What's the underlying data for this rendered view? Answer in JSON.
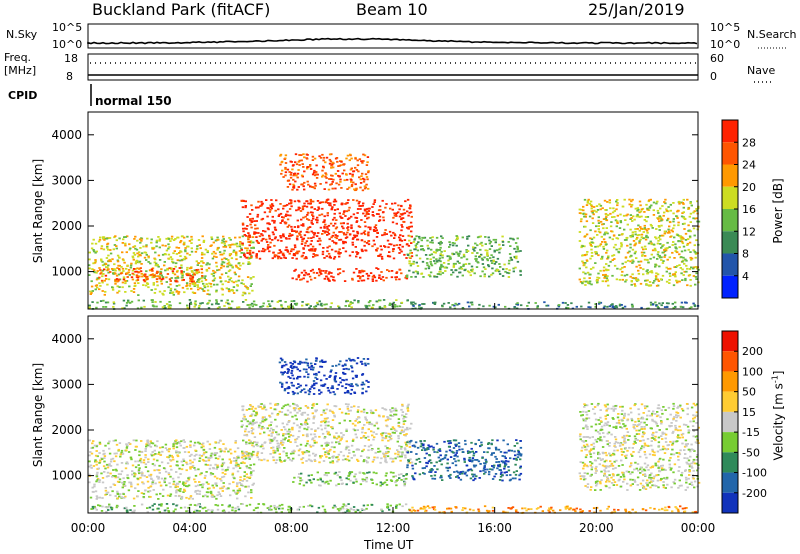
{
  "header": {
    "station": "Buckland Park (fitACF)",
    "beam": "Beam 10",
    "date": "25/Jan/2019"
  },
  "top_panels": {
    "nsky_label": "N.Sky",
    "nsky_ticks": [
      "10^5",
      "10^0"
    ],
    "nsearch_label": "N.Search",
    "nsearch_ticks": [
      "10^5",
      "10^0"
    ],
    "freq_label_1": "Freq.",
    "freq_label_2": "[MHz]",
    "freq_ticks": [
      "18",
      "8"
    ],
    "nave_label": "Nave",
    "nave_ticks": [
      "60",
      "0"
    ],
    "cpid_label": "CPID",
    "cpid_value": "normal 150"
  },
  "chart_data": [
    {
      "type": "heatmap",
      "quantity": "Power",
      "ylabel": "Slant Range [km]",
      "ylim": [
        180,
        4500
      ],
      "yticks": [
        "4000",
        "3000",
        "2000",
        "1000"
      ],
      "colorbar_label": "Power [dB]",
      "colorbar_ticks": [
        "28",
        "24",
        "20",
        "16",
        "12",
        "8",
        "4"
      ],
      "colors": [
        "#0022ff",
        "#2255aa",
        "#3a8a55",
        "#66bb44",
        "#ccdd22",
        "#ff9900",
        "#ff5500",
        "#ff2200"
      ],
      "regions": [
        {
          "t0": 0.0,
          "t1": 12.6,
          "r0": 200,
          "r1": 400,
          "level": 3
        },
        {
          "t0": 12.6,
          "t1": 24.0,
          "r0": 200,
          "r1": 350,
          "level": 2
        },
        {
          "t0": 0.0,
          "t1": 6.5,
          "r0": 500,
          "r1": 1800,
          "level": 4
        },
        {
          "t0": 0.3,
          "t1": 4.5,
          "r0": 800,
          "r1": 1100,
          "level": 6
        },
        {
          "t0": 6.0,
          "t1": 12.7,
          "r0": 1300,
          "r1": 2600,
          "level": 7
        },
        {
          "t0": 8.0,
          "t1": 12.5,
          "r0": 800,
          "r1": 1100,
          "level": 7
        },
        {
          "t0": 12.5,
          "t1": 17.0,
          "r0": 900,
          "r1": 1800,
          "level": 3
        },
        {
          "t0": 19.3,
          "t1": 24.0,
          "r0": 700,
          "r1": 2600,
          "level": 4
        },
        {
          "t0": 7.5,
          "t1": 11.0,
          "r0": 2800,
          "r1": 3600,
          "level": 6
        }
      ]
    },
    {
      "type": "heatmap",
      "quantity": "Velocity",
      "xlabel": "Time UT",
      "ylabel": "Slant Range [km]",
      "xlim": [
        0,
        24
      ],
      "xticks": [
        "00:00",
        "04:00",
        "08:00",
        "12:00",
        "16:00",
        "20:00",
        "00:00"
      ],
      "ylim": [
        180,
        4500
      ],
      "yticks": [
        "4000",
        "3000",
        "2000",
        "1000"
      ],
      "colorbar_label": "Velocity [m s^-1]",
      "colorbar_label_main": "Velocity [m s",
      "colorbar_label_exp": "-1",
      "colorbar_label_end": "]",
      "colorbar_ticks": [
        "200",
        "100",
        "50",
        "15",
        "-15",
        "-50",
        "-100",
        "-200"
      ],
      "colors": [
        "#1133bb",
        "#2266aa",
        "#2f8a5a",
        "#77cc33",
        "#c8c8c8",
        "#ffcc33",
        "#ff9900",
        "#ff5500",
        "#ee1100"
      ],
      "regions": [
        {
          "t0": 0.0,
          "t1": 12.6,
          "r0": 200,
          "r1": 400,
          "level": 3
        },
        {
          "t0": 12.6,
          "t1": 24.0,
          "r0": 200,
          "r1": 350,
          "level": 6
        },
        {
          "t0": 0.0,
          "t1": 6.5,
          "r0": 500,
          "r1": 1800,
          "level": 4
        },
        {
          "t0": 6.0,
          "t1": 12.7,
          "r0": 1300,
          "r1": 2600,
          "level": 4
        },
        {
          "t0": 8.0,
          "t1": 12.5,
          "r0": 800,
          "r1": 1100,
          "level": 3
        },
        {
          "t0": 12.5,
          "t1": 17.0,
          "r0": 900,
          "r1": 1800,
          "level": 1
        },
        {
          "t0": 19.3,
          "t1": 24.0,
          "r0": 700,
          "r1": 2600,
          "level": 4
        },
        {
          "t0": 7.5,
          "t1": 11.0,
          "r0": 2800,
          "r1": 3600,
          "level": 0
        }
      ]
    }
  ]
}
